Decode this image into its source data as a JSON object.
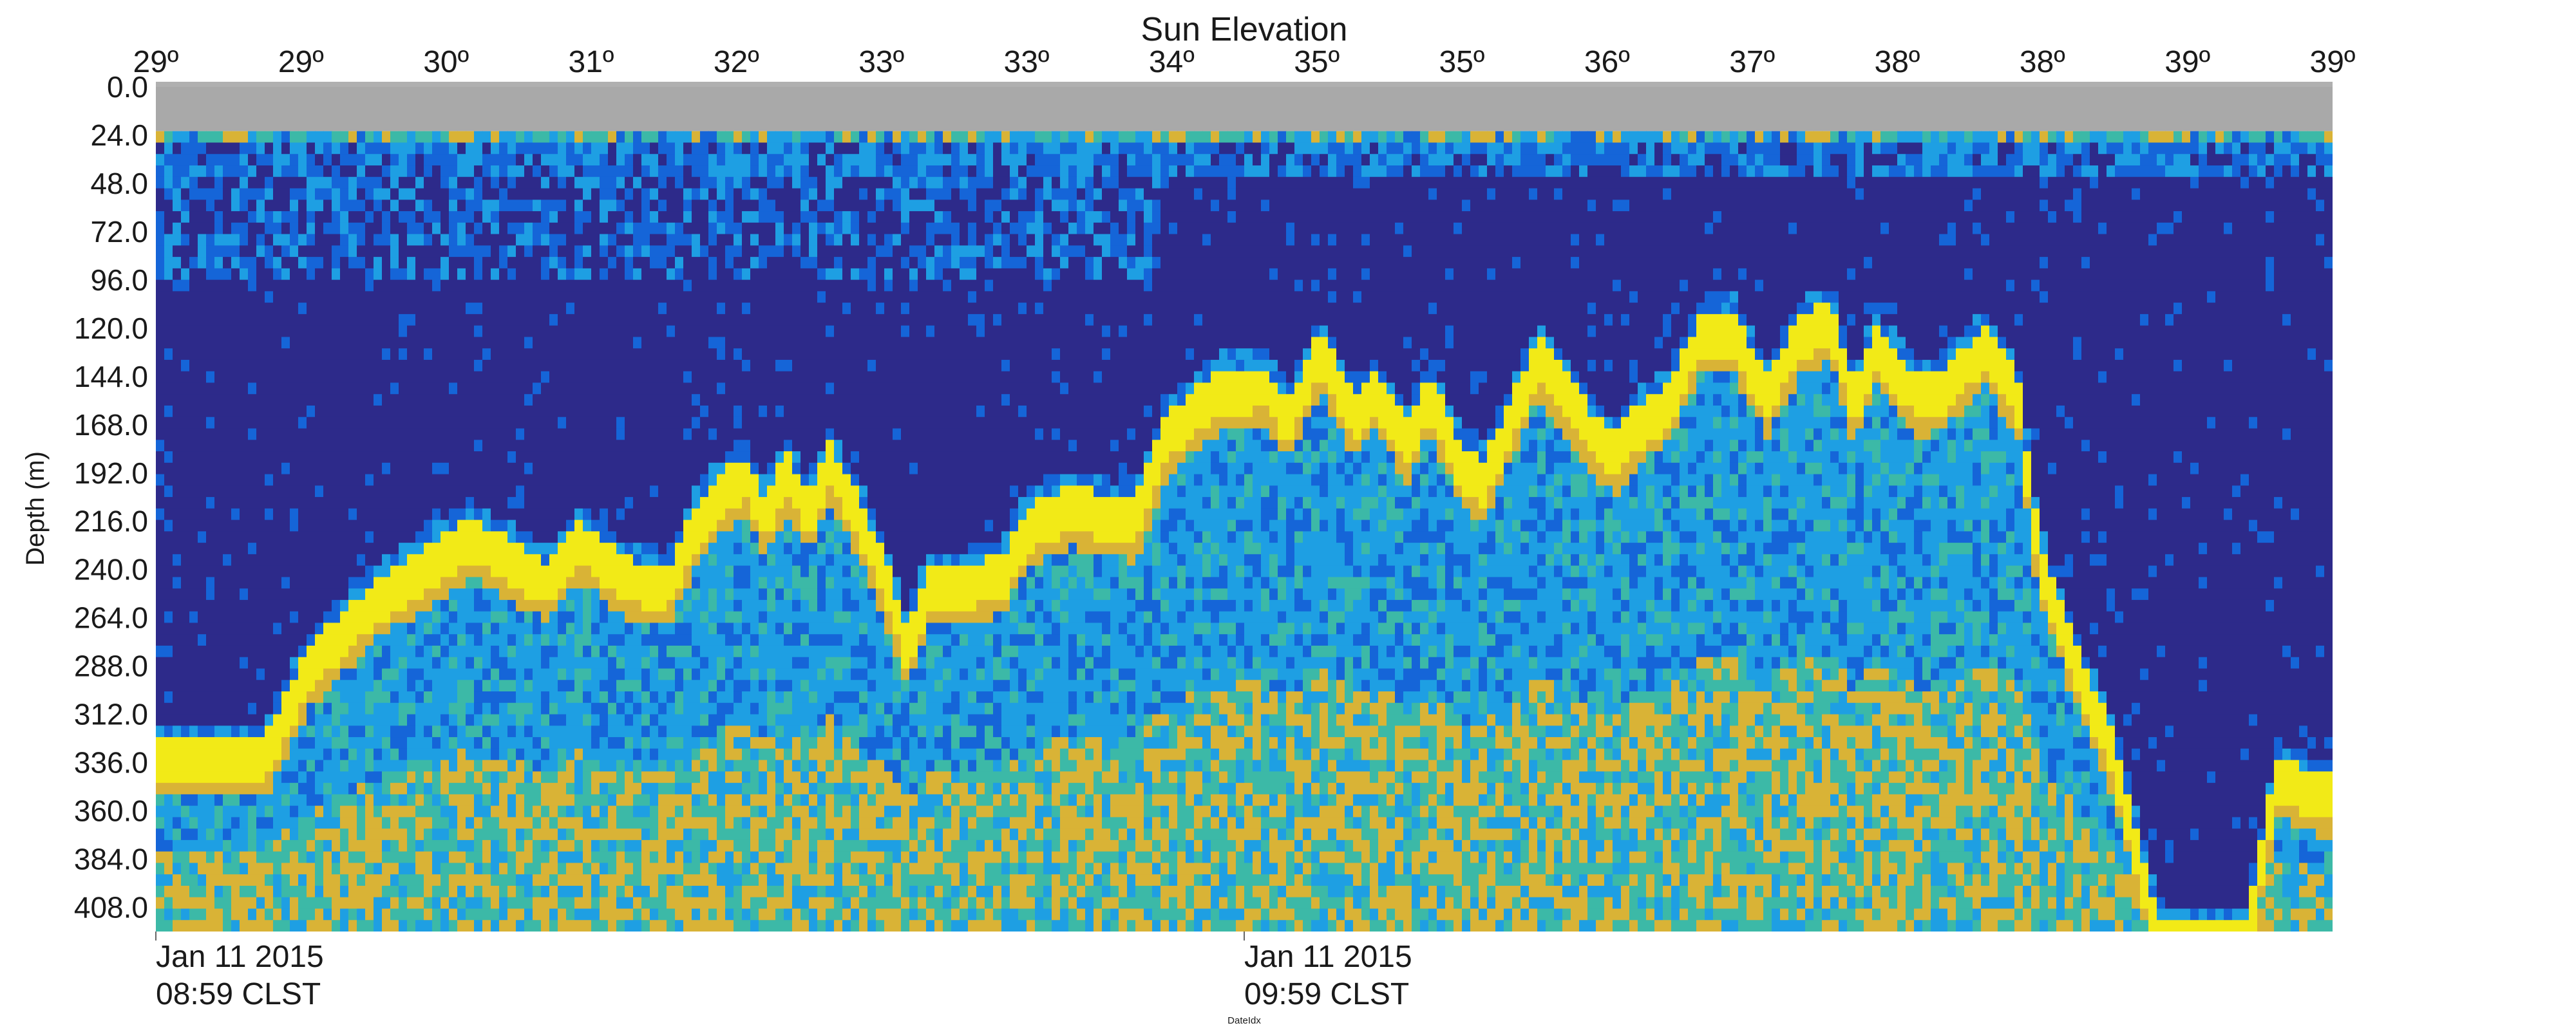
{
  "chart_data": {
    "type": "heatmap",
    "title": "Sun Elevation",
    "xlabel": "DateIdx",
    "ylabel": "Depth (m)",
    "y_ticks": [
      "0.0",
      "24.0",
      "48.0",
      "72.0",
      "96.0",
      "120.0",
      "144.0",
      "168.0",
      "192.0",
      "216.0",
      "240.0",
      "264.0",
      "288.0",
      "312.0",
      "336.0",
      "360.0",
      "384.0",
      "408.0"
    ],
    "ylim": [
      0,
      420
    ],
    "y_inverted": true,
    "top_ticks": [
      "29º",
      "29º",
      "30º",
      "31º",
      "32º",
      "33º",
      "33º",
      "34º",
      "35º",
      "35º",
      "36º",
      "37º",
      "38º",
      "38º",
      "39º",
      "39º"
    ],
    "bottom_ticks": [
      {
        "date": "Jan 11 2015",
        "time": "08:59 CLST",
        "frac": 0.0
      },
      {
        "date": "Jan 11 2015",
        "time": "09:59 CLST",
        "frac": 0.5
      }
    ],
    "colormap": [
      "#2d2a8a",
      "#1565d8",
      "#1e9fe3",
      "#3cb9a7",
      "#d9b336",
      "#f2ea17"
    ],
    "no_data_color": "#a9a9a9",
    "no_data_depth": [
      0,
      22
    ],
    "layer_boundary_depth": [
      [
        0,
        330
      ],
      [
        0.05,
        330
      ],
      [
        0.07,
        285
      ],
      [
        0.1,
        252
      ],
      [
        0.145,
        220
      ],
      [
        0.18,
        242
      ],
      [
        0.195,
        222
      ],
      [
        0.215,
        240
      ],
      [
        0.235,
        245
      ],
      [
        0.25,
        210
      ],
      [
        0.27,
        188
      ],
      [
        0.28,
        210
      ],
      [
        0.29,
        188
      ],
      [
        0.3,
        208
      ],
      [
        0.31,
        183
      ],
      [
        0.325,
        215
      ],
      [
        0.335,
        240
      ],
      [
        0.345,
        275
      ],
      [
        0.355,
        245
      ],
      [
        0.37,
        245
      ],
      [
        0.39,
        238
      ],
      [
        0.4,
        215
      ],
      [
        0.42,
        205
      ],
      [
        0.45,
        212
      ],
      [
        0.465,
        168
      ],
      [
        0.49,
        146
      ],
      [
        0.51,
        145
      ],
      [
        0.52,
        162
      ],
      [
        0.535,
        127
      ],
      [
        0.55,
        160
      ],
      [
        0.56,
        148
      ],
      [
        0.575,
        172
      ],
      [
        0.585,
        148
      ],
      [
        0.6,
        185
      ],
      [
        0.61,
        192
      ],
      [
        0.62,
        168
      ],
      [
        0.635,
        130
      ],
      [
        0.66,
        168
      ],
      [
        0.67,
        180
      ],
      [
        0.68,
        165
      ],
      [
        0.695,
        153
      ],
      [
        0.71,
        118
      ],
      [
        0.725,
        118
      ],
      [
        0.74,
        150
      ],
      [
        0.755,
        120
      ],
      [
        0.77,
        112
      ],
      [
        0.78,
        155
      ],
      [
        0.79,
        125
      ],
      [
        0.81,
        150
      ],
      [
        0.82,
        148
      ],
      [
        0.84,
        125
      ],
      [
        0.855,
        148
      ],
      [
        0.865,
        230
      ],
      [
        0.88,
        278
      ],
      [
        0.9,
        330
      ],
      [
        0.92,
        420
      ],
      [
        0.96,
        420
      ],
      [
        0.975,
        340
      ],
      [
        1.0,
        350
      ]
    ]
  }
}
